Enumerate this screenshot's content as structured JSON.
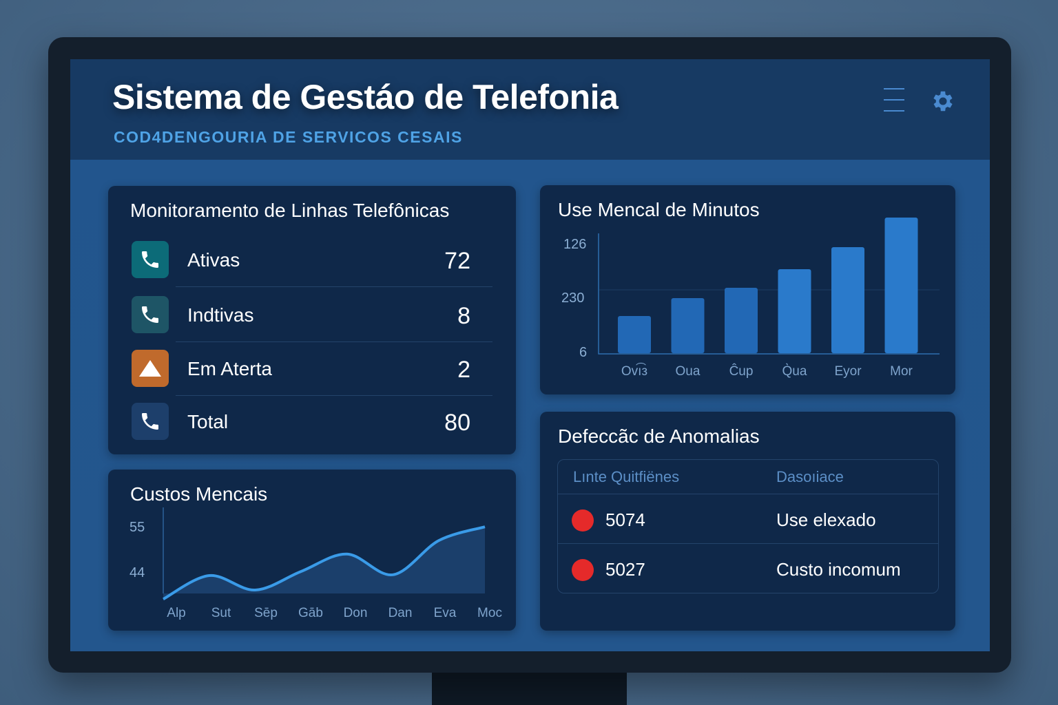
{
  "header": {
    "title": "Sistema de Gestáo de Telefonia",
    "subtitle": "COD4DENGOURIA DE SERVICOS CESAIS"
  },
  "lines_card": {
    "title": "Monitoramento de Linhas Telefônicas",
    "rows": [
      {
        "label": "Ativas",
        "value": "72",
        "icon": "phone-icon",
        "color": "#0c6b78"
      },
      {
        "label": "Indtivas",
        "value": "8",
        "icon": "phone-icon",
        "color": "#1e5566"
      },
      {
        "label": "Em Aterta",
        "value": "2",
        "icon": "warning-icon",
        "color": "#c06a2c"
      },
      {
        "label": "Total",
        "value": "80",
        "icon": "phone-icon",
        "color": "#1d3f6b"
      }
    ]
  },
  "costs_card": {
    "title": "Custos Mencais"
  },
  "minutes_card": {
    "title": "Use Mencal de Minutos"
  },
  "anomalies_card": {
    "title": "Defeccãc de Anomalias",
    "headers": [
      "Lınte Quitfiënes",
      "Dasoıiace"
    ],
    "rows": [
      {
        "line": "5074",
        "desc": "Use elexado",
        "status_color": "#e52a2a"
      },
      {
        "line": "5027",
        "desc": "Custo incomum",
        "status_color": "#e52a2a"
      }
    ]
  },
  "chart_data": [
    {
      "type": "bar",
      "title": "Use Mencal de Minutos",
      "categories": [
        "Ovı͡з",
        "Oua",
        "Ĉup",
        "Q̀ua",
        "Eyor",
        "Mor"
      ],
      "values": [
        54,
        80,
        95,
        122,
        154,
        197
      ],
      "ytick_labels": [
        "126",
        "230",
        "6"
      ],
      "ylim": [
        0,
        200
      ],
      "color": "#2a7acb"
    },
    {
      "type": "area",
      "title": "Custos Mencais",
      "categories": [
        "Alp",
        "Sut",
        "Sēp",
        "Gāb",
        "Don",
        "Dan",
        "Eva",
        "Moc"
      ],
      "values": [
        41.3,
        47,
        43.5,
        48,
        52.2,
        47.2,
        55.5,
        58.8
      ],
      "ytick_labels": [
        "55",
        "44"
      ],
      "ylim": [
        30,
        60
      ],
      "color": "#3a9be8"
    }
  ]
}
